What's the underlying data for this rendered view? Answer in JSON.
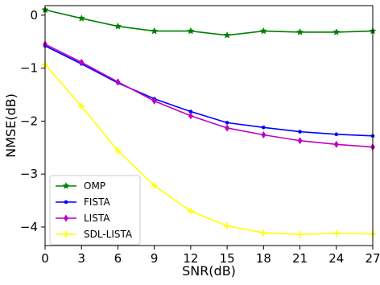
{
  "chart_data": {
    "type": "line",
    "title": "",
    "xlabel": "SNR(dB)",
    "ylabel": "NMSE(dB)",
    "x": [
      0,
      3,
      6,
      9,
      12,
      15,
      18,
      21,
      24,
      27
    ],
    "xticks": [
      "0",
      "3",
      "6",
      "9",
      "12",
      "15",
      "18",
      "21",
      "24",
      "27"
    ],
    "yticks": [
      "0",
      "−1",
      "−2",
      "−3",
      "−4"
    ],
    "ytick_values": [
      0,
      -1,
      -2,
      -3,
      -4
    ],
    "xlim": [
      0,
      27
    ],
    "ylim": [
      -4.35,
      0.18
    ],
    "grid": false,
    "legend_position": "bottom-left",
    "series": [
      {
        "name": "OMP",
        "color": "#008000",
        "marker": "star",
        "values": [
          0.1,
          -0.06,
          -0.21,
          -0.3,
          -0.3,
          -0.38,
          -0.3,
          -0.32,
          -0.32,
          -0.3
        ]
      },
      {
        "name": "FISTA",
        "color": "#0000ff",
        "marker": "point",
        "values": [
          -0.58,
          -0.92,
          -1.28,
          -1.58,
          -1.82,
          -2.03,
          -2.12,
          -2.2,
          -2.25,
          -2.28
        ]
      },
      {
        "name": "LISTA",
        "color": "#c000c0",
        "marker": "diamond",
        "values": [
          -0.55,
          -0.89,
          -1.26,
          -1.62,
          -1.9,
          -2.13,
          -2.26,
          -2.37,
          -2.44,
          -2.49
        ]
      },
      {
        "name": "SDL-LISTA",
        "color": "#ffff00",
        "marker": "plus",
        "values": [
          -0.93,
          -1.72,
          -2.56,
          -3.22,
          -3.7,
          -3.98,
          -4.11,
          -4.14,
          -4.12,
          -4.13
        ]
      }
    ]
  }
}
